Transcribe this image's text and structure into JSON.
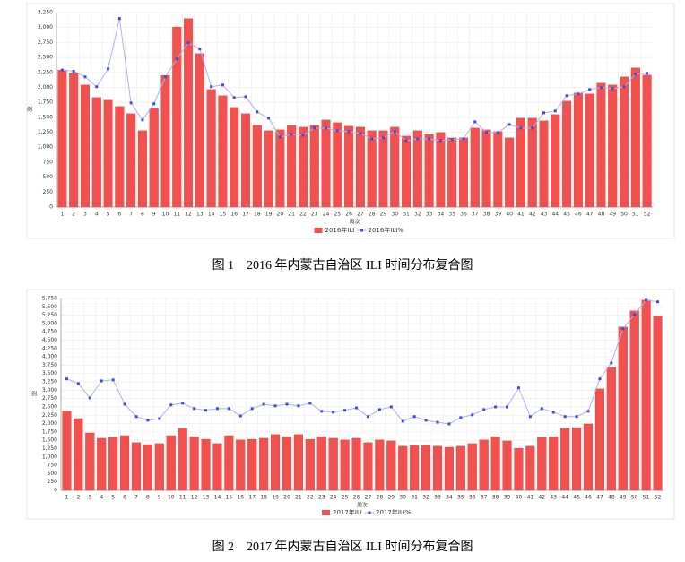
{
  "chart_data": [
    {
      "type": "combo",
      "caption": "图 1　2016 年内蒙古自治区 ILI 时间分布复合图",
      "x_label": "周次",
      "y_label": "例",
      "categories": [
        "1",
        "2",
        "3",
        "4",
        "5",
        "6",
        "7",
        "8",
        "9",
        "10",
        "11",
        "12",
        "13",
        "14",
        "15",
        "16",
        "17",
        "18",
        "19",
        "20",
        "21",
        "22",
        "23",
        "24",
        "25",
        "26",
        "27",
        "28",
        "29",
        "30",
        "31",
        "32",
        "33",
        "34",
        "35",
        "36",
        "37",
        "38",
        "39",
        "40",
        "41",
        "42",
        "43",
        "44",
        "45",
        "46",
        "47",
        "48",
        "49",
        "50",
        "51",
        "52"
      ],
      "series": [
        {
          "name": "2016年ILI",
          "type": "bar",
          "color": "#f2524f",
          "values": [
            2290,
            2230,
            2040,
            1830,
            1785,
            1680,
            1560,
            1275,
            1650,
            2200,
            3010,
            3150,
            2565,
            1965,
            1860,
            1665,
            1560,
            1365,
            1275,
            1290,
            1365,
            1335,
            1365,
            1455,
            1410,
            1350,
            1335,
            1275,
            1275,
            1335,
            1185,
            1275,
            1215,
            1245,
            1155,
            1155,
            1320,
            1290,
            1260,
            1155,
            1485,
            1485,
            1440,
            1545,
            1770,
            1905,
            1890,
            2070,
            2040,
            2175,
            2325,
            2205
          ]
        },
        {
          "name": "2016年ILI%",
          "type": "line",
          "color": "#3b4be0",
          "values": [
            2290,
            2270,
            2175,
            2010,
            2310,
            3150,
            1740,
            1455,
            1725,
            2175,
            2475,
            2745,
            2640,
            2010,
            2040,
            1830,
            1845,
            1590,
            1485,
            1170,
            1215,
            1200,
            1320,
            1320,
            1275,
            1260,
            1230,
            1140,
            1155,
            1260,
            1110,
            1140,
            1140,
            1110,
            1125,
            1140,
            1425,
            1245,
            1245,
            1380,
            1320,
            1320,
            1575,
            1605,
            1860,
            1890,
            1965,
            1995,
            1980,
            2010,
            2220,
            2235
          ]
        }
      ],
      "ylim": [
        0,
        3250
      ],
      "yticks": [
        0,
        250,
        500,
        750,
        {
          "value": 1000,
          "label": "1,000"
        },
        {
          "value": 1250,
          "label": "1,250"
        },
        {
          "value": 1500,
          "label": "1,500"
        },
        {
          "value": 1750,
          "label": "1,750"
        },
        {
          "value": 2000,
          "label": "2,000"
        },
        {
          "value": 2250,
          "label": "2,250"
        },
        {
          "value": 2500,
          "label": "2,500"
        },
        {
          "value": 2750,
          "label": "2,750"
        },
        {
          "value": 3000,
          "label": "3,000"
        },
        {
          "value": 3250,
          "label": "3,250"
        }
      ],
      "grid": true
    },
    {
      "type": "combo",
      "caption": "图 2　2017 年内蒙古自治区 ILI 时间分布复合图",
      "x_label": "周次",
      "y_label": "例",
      "categories": [
        "1",
        "2",
        "3",
        "4",
        "5",
        "6",
        "7",
        "8",
        "9",
        "10",
        "11",
        "12",
        "13",
        "14",
        "15",
        "16",
        "17",
        "18",
        "19",
        "20",
        "21",
        "22",
        "23",
        "24",
        "25",
        "26",
        "27",
        "28",
        "29",
        "30",
        "31",
        "32",
        "33",
        "34",
        "35",
        "36",
        "37",
        "38",
        "39",
        "40",
        "41",
        "42",
        "43",
        "44",
        "45",
        "46",
        "47",
        "48",
        "49",
        "50",
        "51",
        "52"
      ],
      "series": [
        {
          "name": "2017年ILI",
          "type": "bar",
          "color": "#f2524f",
          "values": [
            2370,
            2150,
            1720,
            1560,
            1590,
            1640,
            1430,
            1370,
            1400,
            1640,
            1860,
            1610,
            1530,
            1400,
            1640,
            1510,
            1530,
            1560,
            1670,
            1610,
            1670,
            1530,
            1610,
            1560,
            1510,
            1560,
            1430,
            1510,
            1480,
            1320,
            1350,
            1350,
            1320,
            1290,
            1320,
            1400,
            1510,
            1610,
            1480,
            1260,
            1320,
            1590,
            1610,
            1860,
            1880,
            1990,
            3040,
            3690,
            4900,
            5380,
            5700,
            5220
          ]
        },
        {
          "name": "2017年ILI%",
          "type": "line",
          "color": "#3b4be0",
          "values": [
            3340,
            3200,
            2770,
            3280,
            3310,
            2580,
            2210,
            2100,
            2150,
            2560,
            2610,
            2450,
            2400,
            2450,
            2450,
            2230,
            2450,
            2580,
            2530,
            2580,
            2530,
            2610,
            2370,
            2340,
            2400,
            2470,
            2210,
            2420,
            2500,
            2070,
            2210,
            2100,
            2040,
            1990,
            2180,
            2260,
            2420,
            2500,
            2500,
            3070,
            2210,
            2450,
            2340,
            2210,
            2210,
            2370,
            3340,
            3820,
            4840,
            5270,
            5700,
            5650
          ]
        }
      ],
      "ylim": [
        0,
        5750
      ],
      "yticks": [
        0,
        250,
        500,
        750,
        {
          "value": 1000,
          "label": "1,000"
        },
        {
          "value": 1250,
          "label": "1,250"
        },
        {
          "value": 1500,
          "label": "1,500"
        },
        {
          "value": 1750,
          "label": "1,750"
        },
        {
          "value": 2000,
          "label": "2,000"
        },
        {
          "value": 2250,
          "label": "2,250"
        },
        {
          "value": 2500,
          "label": "2,500"
        },
        {
          "value": 2750,
          "label": "2,750"
        },
        {
          "value": 3000,
          "label": "3,000"
        },
        {
          "value": 3250,
          "label": "3,250"
        },
        {
          "value": 3500,
          "label": "3,500"
        },
        {
          "value": 3750,
          "label": "3,750"
        },
        {
          "value": 4000,
          "label": "4,000"
        },
        {
          "value": 4250,
          "label": "4,250"
        },
        {
          "value": 4500,
          "label": "4,500"
        },
        {
          "value": 4750,
          "label": "4,750"
        },
        {
          "value": 5000,
          "label": "5,000"
        },
        {
          "value": 5250,
          "label": "5,250"
        },
        {
          "value": 5500,
          "label": "5,500"
        },
        {
          "value": 5750,
          "label": "5,750"
        }
      ],
      "grid": true
    }
  ]
}
